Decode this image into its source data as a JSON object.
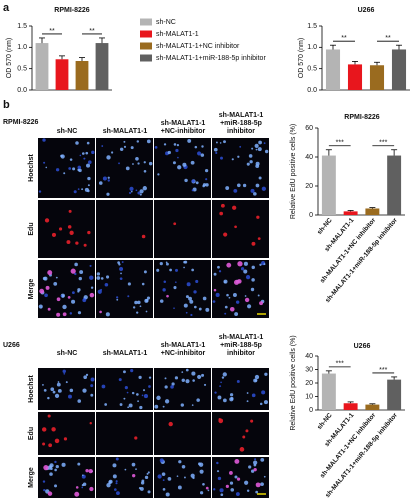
{
  "chart_data": [
    {
      "type": "bar",
      "title": "RPMI-8226",
      "y_label": "OD 570 (nm)",
      "categories": [
        "sh-NC",
        "sh-MALAT1-1",
        "sh-MALAT1-1+NC inhibitor",
        "sh-MALAT1-1+miR-188-5p inhibitor"
      ],
      "values": [
        1.1,
        0.72,
        0.68,
        1.1
      ],
      "errors": [
        0.12,
        0.08,
        0.08,
        0.12
      ],
      "colors": [
        "#b4b4b4",
        "#e8161d",
        "#9a6b1f",
        "#606060"
      ],
      "ylim": [
        0,
        1.5
      ],
      "yticks": [
        {
          "value": 0,
          "label": "0.0"
        },
        {
          "value": 0.5,
          "label": "0.5"
        },
        {
          "value": 1,
          "label": "1.0"
        },
        {
          "value": 1.5,
          "label": "1.5"
        }
      ],
      "legend": true,
      "annotations": [
        {
          "text": "**",
          "between": [
            0,
            1
          ]
        },
        {
          "text": "**",
          "between": [
            2,
            3
          ]
        }
      ]
    },
    {
      "type": "bar",
      "title": "U266",
      "y_label": "OD 570 (nm)",
      "values": [
        0.95,
        0.6,
        0.58,
        0.95
      ],
      "errors": [
        0.1,
        0.07,
        0.07,
        0.1
      ],
      "colors": [
        "#b4b4b4",
        "#e8161d",
        "#9a6b1f",
        "#606060"
      ],
      "ylim": [
        0,
        1.5
      ],
      "yticks": [
        {
          "value": 0,
          "label": "0.0"
        },
        {
          "value": 0.5,
          "label": "0.5"
        },
        {
          "value": 1,
          "label": "1.0"
        },
        {
          "value": 1.5,
          "label": "1.5"
        }
      ],
      "annotations": [
        {
          "text": "**",
          "between": [
            0,
            1
          ]
        },
        {
          "text": "**",
          "between": [
            2,
            3
          ]
        }
      ]
    },
    {
      "type": "bar",
      "title": "RPMI-8226",
      "y_label": "Relative EdU positive cells (%)",
      "categories": [
        "sh-NC",
        "sh-MALAT1-1",
        "sh-MALAT1-1+NC inhibitor",
        "sh-MALAT1-1+miR-188-5p inhibitor"
      ],
      "values": [
        41,
        2.5,
        4.5,
        41
      ],
      "errors": [
        4,
        0.6,
        0.6,
        4
      ],
      "colors": [
        "#b4b4b4",
        "#e8161d",
        "#9a6b1f",
        "#606060"
      ],
      "ylim": [
        0,
        60
      ],
      "yticks": [
        0,
        20,
        40,
        60
      ],
      "annotations": [
        {
          "text": "***",
          "between": [
            0,
            1
          ]
        },
        {
          "text": "***",
          "between": [
            2,
            3
          ]
        }
      ]
    },
    {
      "type": "bar",
      "title": "U266",
      "y_label": "Relative EdU positive cells (%)",
      "categories": [
        "sh-NC",
        "sh-MALAT1-1",
        "sh-MALAT1-1+NC inhibitor",
        "sh-MALAT1-1+miR-188-5p inhibitor"
      ],
      "values": [
        27,
        5,
        4,
        22.5
      ],
      "errors": [
        2,
        1,
        0.6,
        2
      ],
      "colors": [
        "#b4b4b4",
        "#e8161d",
        "#9a6b1f",
        "#606060"
      ],
      "ylim": [
        0,
        40
      ],
      "yticks": [
        0,
        10,
        20,
        30,
        40
      ],
      "annotations": [
        {
          "text": "***",
          "between": [
            0,
            1
          ]
        },
        {
          "text": "***",
          "between": [
            2,
            3
          ]
        }
      ]
    }
  ],
  "figure": {
    "panel_a": "a",
    "panel_b": "b",
    "image_grids": [
      {
        "cell_line": "RPMI-8226",
        "columns": [
          [
            "sh-NC"
          ],
          [
            "sh-MALAT1-1"
          ],
          [
            "sh-MALAT1-1",
            "+NC-inhibitor"
          ],
          [
            "sh-MALAT1-1",
            "+miR-188-5p",
            "inhibitor"
          ]
        ],
        "rows": [
          "Hoechst",
          "Edu",
          "Merge"
        ]
      },
      {
        "cell_line": "U266",
        "columns": [
          [
            "sh-NC"
          ],
          [
            "sh-MALAT1-1"
          ],
          [
            "sh-MALAT1-1",
            "+NC-inhibitor"
          ],
          [
            "sh-MALAT1-1",
            "+miR-188-5p",
            "inhibitor"
          ]
        ],
        "rows": [
          "Hoechst",
          "Edu",
          "Merge"
        ]
      }
    ]
  }
}
